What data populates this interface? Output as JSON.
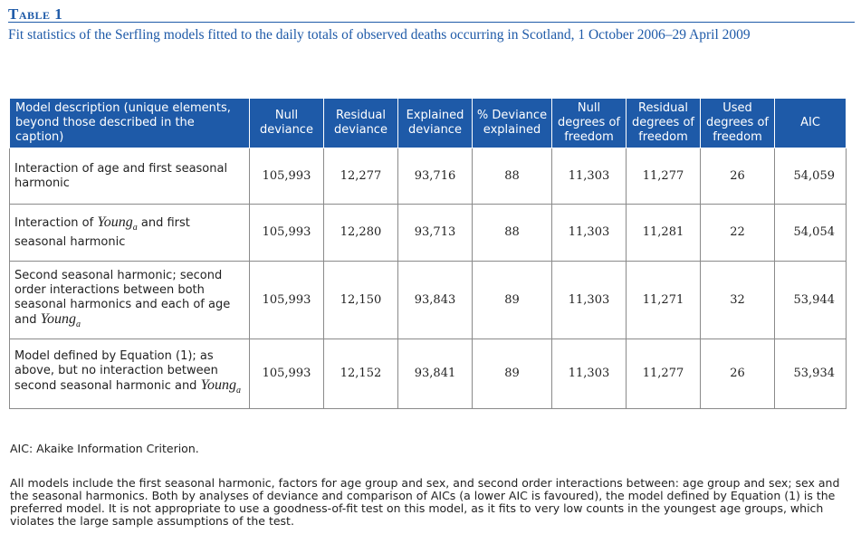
{
  "table_label": "Table 1",
  "caption": "Fit statistics of the Serfling models fitted to the daily totals of observed deaths occurring in Scotland, 1 October 2006–29 April 2009",
  "headers": {
    "model": "Model description (unique elements, beyond those described in the caption)",
    "null_dev": "Null deviance",
    "resid_dev": "Residual deviance",
    "expl_dev": "Explained deviance",
    "pct_dev": "% Deviance explained",
    "null_df": "Null degrees of freedom",
    "resid_df": "Residual degrees of freedom",
    "used_df": "Used degrees of freedom",
    "aic": "AIC"
  },
  "rows": [
    {
      "desc_parts": [
        "Interaction of age and first seasonal harmonic"
      ],
      "null_dev": "105,993",
      "resid_dev": "12,277",
      "expl_dev": "93,716",
      "pct_dev": "88",
      "null_df": "11,303",
      "resid_df": "11,277",
      "used_df": "26",
      "aic": "54,059"
    },
    {
      "desc_parts": [
        "Interaction of ",
        "Young",
        "a",
        " and first seasonal harmonic"
      ],
      "null_dev": "105,993",
      "resid_dev": "12,280",
      "expl_dev": "93,713",
      "pct_dev": "88",
      "null_df": "11,303",
      "resid_df": "11,281",
      "used_df": "22",
      "aic": "54,054"
    },
    {
      "desc_parts": [
        "Second seasonal harmonic; second order interactions between both seasonal harmonics and each of age and ",
        "Young",
        "a"
      ],
      "null_dev": "105,993",
      "resid_dev": "12,150",
      "expl_dev": "93,843",
      "pct_dev": "89",
      "null_df": "11,303",
      "resid_df": "11,271",
      "used_df": "32",
      "aic": "53,944"
    },
    {
      "desc_parts": [
        "Model defined by Equation (1); as above, but no interaction between second seasonal harmonic and ",
        "Young",
        "a"
      ],
      "null_dev": "105,993",
      "resid_dev": "12,152",
      "expl_dev": "93,841",
      "pct_dev": "89",
      "null_df": "11,303",
      "resid_df": "11,277",
      "used_df": "26",
      "aic": "53,934"
    }
  ],
  "abbreviation_note": "AIC: Akaike Information Criterion.",
  "footnote": "All models include the first seasonal harmonic, factors for age group and sex, and second order interactions between: age group and sex; sex and the seasonal harmonics. Both by analyses of deviance and comparison of AICs (a lower AIC is favoured), the model defined by Equation (1) is the preferred model. It is not appropriate to use a goodness-of-fit test on this model, as it fits to very low counts in the youngest age groups, which violates the large sample assumptions of the test."
}
